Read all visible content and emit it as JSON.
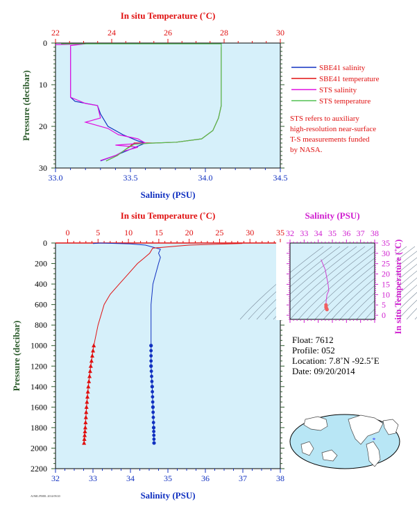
{
  "chart_data": [
    {
      "type": "line",
      "top_axis_title": "In situ Temperature (˚C)",
      "xlabel": "Salinity (PSU)",
      "ylabel": "Pressure (decibar)",
      "xlim": [
        33.0,
        34.5
      ],
      "xticks": [
        "33.0",
        "33.5",
        "34.0",
        "34.5"
      ],
      "temp_lim": [
        22,
        30
      ],
      "temp_ticks": [
        "22",
        "24",
        "26",
        "28",
        "30"
      ],
      "ylim": [
        0,
        30
      ],
      "yticks": [
        "0",
        "10",
        "20",
        "30"
      ],
      "legend": {
        "position": "right",
        "entries": [
          "SBE41 salinity",
          "SBE41 temperature",
          "STS salinity",
          "STS temperature"
        ]
      },
      "note": [
        "STS refers to auxiliary",
        "high-resolution near-surface",
        "T-S measurements funded",
        "by NASA."
      ],
      "series": [
        {
          "name": "SBE41 salinity",
          "axis": "salinity",
          "color": "#1030c0",
          "points": [
            [
              33.1,
              1
            ],
            [
              33.1,
              7
            ],
            [
              33.1,
              13
            ],
            [
              33.13,
              14
            ],
            [
              33.28,
              15
            ],
            [
              33.3,
              17
            ],
            [
              33.35,
              20
            ],
            [
              33.45,
              22
            ],
            [
              33.55,
              23.5
            ],
            [
              33.6,
              24
            ],
            [
              33.5,
              25.5
            ],
            [
              33.4,
              27
            ],
            [
              33.3,
              28.3
            ]
          ]
        },
        {
          "name": "SBE41 temperature",
          "axis": "temperature",
          "color": "#e01010",
          "points": [
            [
              27.9,
              1
            ],
            [
              27.9,
              10
            ],
            [
              27.9,
              15
            ],
            [
              27.8,
              18
            ],
            [
              27.6,
              21
            ],
            [
              27.2,
              23
            ],
            [
              26.3,
              23.8
            ],
            [
              25.5,
              24
            ],
            [
              24.8,
              24
            ],
            [
              24.5,
              25.5
            ],
            [
              24.2,
              27
            ],
            [
              23.8,
              28.3
            ]
          ]
        },
        {
          "name": "STS salinity",
          "axis": "salinity",
          "color": "#e010e0",
          "points": [
            [
              33.0,
              0.4
            ],
            [
              33.2,
              0.2
            ],
            [
              33.1,
              0.6
            ],
            [
              33.1,
              5
            ],
            [
              33.1,
              13
            ],
            [
              33.2,
              14.5
            ],
            [
              33.28,
              15
            ],
            [
              33.3,
              18
            ],
            [
              33.2,
              19
            ],
            [
              33.35,
              20.5
            ],
            [
              33.42,
              22
            ],
            [
              33.55,
              23
            ],
            [
              33.6,
              24
            ],
            [
              33.4,
              24.5
            ],
            [
              33.55,
              25
            ],
            [
              33.45,
              26
            ],
            [
              33.4,
              27
            ],
            [
              33.3,
              28.2
            ]
          ]
        },
        {
          "name": "STS temperature",
          "axis": "temperature",
          "color": "#50c050",
          "points": [
            [
              22.2,
              0.2
            ],
            [
              27.9,
              0.2
            ],
            [
              27.9,
              1
            ],
            [
              27.9,
              10
            ],
            [
              27.9,
              15
            ],
            [
              27.8,
              18
            ],
            [
              27.6,
              21
            ],
            [
              27.2,
              23
            ],
            [
              26.3,
              23.8
            ],
            [
              25.5,
              24
            ],
            [
              24.8,
              24.3
            ],
            [
              24.5,
              25.5
            ],
            [
              24.2,
              27
            ],
            [
              23.8,
              28.3
            ]
          ]
        }
      ]
    },
    {
      "type": "line",
      "top_axis_title": "In situ Temperature (˚C)",
      "xlabel": "Salinity (PSU)",
      "ylabel": "Pressure (decibar)",
      "xlim": [
        32,
        38
      ],
      "xticks": [
        "32",
        "33",
        "34",
        "35",
        "36",
        "37",
        "38"
      ],
      "temp_lim": [
        -2,
        35
      ],
      "temp_ticks": [
        "0",
        "5",
        "10",
        "15",
        "20",
        "25",
        "30",
        "35"
      ],
      "ylim": [
        0,
        2200
      ],
      "yticks": [
        "0",
        "200",
        "400",
        "600",
        "800",
        "1000",
        "1200",
        "1400",
        "1600",
        "1800",
        "2000",
        "2200"
      ],
      "series": [
        {
          "name": "salinity",
          "axis": "salinity",
          "color": "#1030c0",
          "points": [
            [
              33.0,
              5
            ],
            [
              33.2,
              0
            ],
            [
              34.0,
              8
            ],
            [
              34.4,
              20
            ],
            [
              34.8,
              60
            ],
            [
              34.75,
              100
            ],
            [
              34.8,
              140
            ],
            [
              34.75,
              200
            ],
            [
              34.6,
              400
            ],
            [
              34.55,
              600
            ],
            [
              34.55,
              800
            ],
            [
              34.55,
              1000
            ],
            [
              34.55,
              1200
            ],
            [
              34.58,
              1400
            ],
            [
              34.6,
              1600
            ],
            [
              34.62,
              1800
            ],
            [
              34.63,
              1950
            ]
          ]
        },
        {
          "name": "temperature",
          "axis": "temperature",
          "color": "#e01010",
          "points": [
            [
              28.7,
              0
            ],
            [
              28.7,
              5
            ],
            [
              20,
              20
            ],
            [
              14,
              50
            ],
            [
              13.5,
              100
            ],
            [
              12.5,
              150
            ],
            [
              11.5,
              200
            ],
            [
              10,
              300
            ],
            [
              8.5,
              400
            ],
            [
              7,
              500
            ],
            [
              6,
              600
            ],
            [
              5,
              800
            ],
            [
              4.3,
              1000
            ],
            [
              3.8,
              1200
            ],
            [
              3.4,
              1400
            ],
            [
              3.1,
              1600
            ],
            [
              2.9,
              1800
            ],
            [
              2.7,
              1950
            ]
          ]
        }
      ],
      "markers_from": 1000
    },
    {
      "type": "scatter",
      "title": "Salinity (PSU)",
      "xlim": [
        32,
        38
      ],
      "xticks": [
        "32",
        "33",
        "34",
        "35",
        "36",
        "37",
        "38"
      ],
      "ylabel": "In situ Temperature (˚C)",
      "ylim": [
        -2,
        35
      ],
      "yticks": [
        "0",
        "5",
        "10",
        "15",
        "20",
        "25",
        "30",
        "35"
      ],
      "points": [
        [
          34.2,
          27
        ],
        [
          34.5,
          22
        ],
        [
          34.7,
          15
        ],
        [
          34.75,
          12
        ],
        [
          34.62,
          10
        ],
        [
          34.56,
          7
        ],
        [
          34.55,
          5
        ],
        [
          34.55,
          4
        ],
        [
          34.57,
          3.5
        ],
        [
          34.6,
          3
        ],
        [
          34.62,
          2.8
        ]
      ]
    }
  ],
  "float_info": {
    "float": "Float:  7612",
    "profile": "Profile:  052",
    "location": "Location:  7.8˚N  -92.5˚E",
    "date": "Date:  09/20/2014"
  },
  "footer_code": "AOML/PMEL 2014/09/20"
}
